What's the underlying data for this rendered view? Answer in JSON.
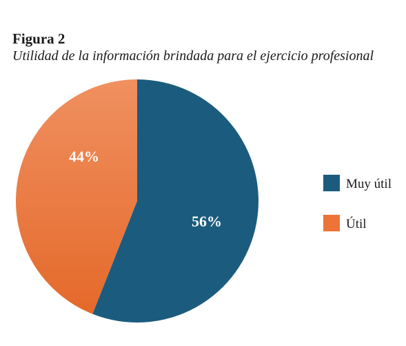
{
  "figure": {
    "label": "Figura 2",
    "caption": "Utilidad de la información brindada para el ejercicio profesional"
  },
  "chart_data": {
    "type": "pie",
    "categories": [
      "Muy útil",
      "Útil"
    ],
    "values": [
      56,
      44
    ],
    "data_labels": [
      "56%",
      "44%"
    ],
    "colors": [
      "#1b5c7e",
      "#ec7438"
    ],
    "legend": "right",
    "start_angle": "12 o'clock, clockwise"
  }
}
